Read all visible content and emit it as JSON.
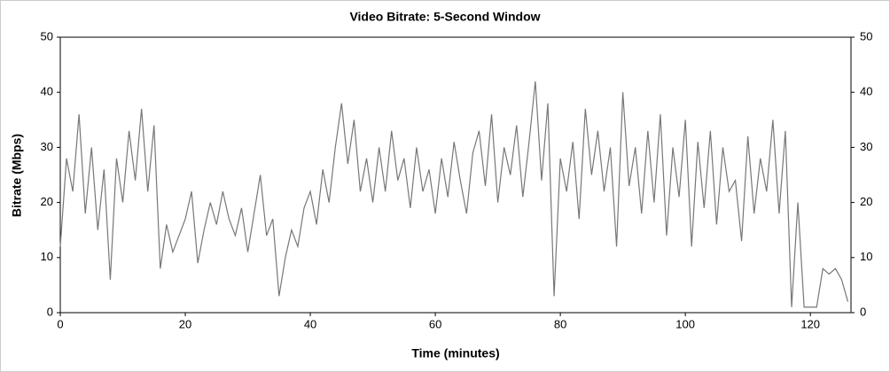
{
  "chart_data": {
    "type": "line",
    "title": "Video Bitrate: 5-Second Window",
    "xlabel": "Time (minutes)",
    "ylabel": "Bitrate (Mbps)",
    "x": [
      0,
      1,
      2,
      3,
      4,
      5,
      6,
      7,
      8,
      9,
      10,
      11,
      12,
      13,
      14,
      15,
      16,
      17,
      18,
      19,
      20,
      21,
      22,
      23,
      24,
      25,
      26,
      27,
      28,
      29,
      30,
      31,
      32,
      33,
      34,
      35,
      36,
      37,
      38,
      39,
      40,
      41,
      42,
      43,
      44,
      45,
      46,
      47,
      48,
      49,
      50,
      51,
      52,
      53,
      54,
      55,
      56,
      57,
      58,
      59,
      60,
      61,
      62,
      63,
      64,
      65,
      66,
      67,
      68,
      69,
      70,
      71,
      72,
      73,
      74,
      75,
      76,
      77,
      78,
      79,
      80,
      81,
      82,
      83,
      84,
      85,
      86,
      87,
      88,
      89,
      90,
      91,
      92,
      93,
      94,
      95,
      96,
      97,
      98,
      99,
      100,
      101,
      102,
      103,
      104,
      105,
      106,
      107,
      108,
      109,
      110,
      111,
      112,
      113,
      114,
      115,
      116,
      117,
      118,
      119,
      120,
      121,
      122,
      123,
      124,
      125,
      126
    ],
    "series": [
      {
        "color": "#777777",
        "values": [
          12,
          28,
          22,
          36,
          18,
          30,
          15,
          26,
          6,
          28,
          20,
          33,
          24,
          37,
          22,
          34,
          8,
          16,
          11,
          14,
          17,
          22,
          9,
          15,
          20,
          16,
          22,
          17,
          14,
          19,
          11,
          18,
          25,
          14,
          17,
          3,
          10,
          15,
          12,
          19,
          22,
          16,
          26,
          20,
          30,
          38,
          27,
          35,
          22,
          28,
          20,
          30,
          22,
          33,
          24,
          28,
          19,
          30,
          22,
          26,
          18,
          28,
          21,
          31,
          24,
          18,
          29,
          33,
          23,
          36,
          20,
          30,
          25,
          34,
          21,
          31,
          42,
          24,
          38,
          3,
          28,
          22,
          31,
          17,
          37,
          25,
          33,
          22,
          30,
          12,
          40,
          23,
          30,
          18,
          33,
          20,
          36,
          14,
          30,
          21,
          35,
          12,
          31,
          19,
          33,
          16,
          30,
          22,
          24,
          13,
          32,
          18,
          28,
          22,
          35,
          18,
          33,
          1,
          20,
          1,
          1,
          1,
          8,
          7,
          8,
          6,
          2
        ]
      }
    ],
    "xlim": [
      0,
      126.5
    ],
    "ylim": [
      0,
      50
    ],
    "xticks": [
      0,
      20,
      40,
      60,
      80,
      100,
      120
    ],
    "yticks": [
      0,
      10,
      20,
      30,
      40,
      50
    ],
    "y2lim": [
      0,
      50
    ],
    "y2ticks": [
      0,
      10,
      20,
      30,
      40,
      50
    ]
  }
}
